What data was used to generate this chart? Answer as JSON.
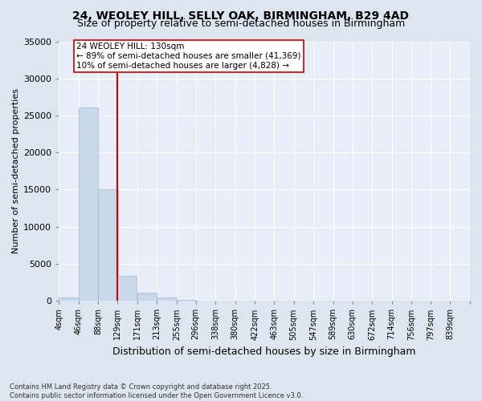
{
  "title1": "24, WEOLEY HILL, SELLY OAK, BIRMINGHAM, B29 4AD",
  "title2": "Size of property relative to semi-detached houses in Birmingham",
  "xlabel": "Distribution of semi-detached houses by size in Birmingham",
  "ylabel": "Number of semi-detached properties",
  "property_label": "24 WEOLEY HILL: 130sqm",
  "annotation_line1": "← 89% of semi-detached houses are smaller (41,369)",
  "annotation_line2": "10% of semi-detached houses are larger (4,828) →",
  "footer1": "Contains HM Land Registry data © Crown copyright and database right 2025.",
  "footer2": "Contains public sector information licensed under the Open Government Licence v3.0.",
  "bin_labels": [
    "4sqm",
    "46sqm",
    "88sqm",
    "129sqm",
    "171sqm",
    "213sqm",
    "255sqm",
    "296sqm",
    "338sqm",
    "380sqm",
    "422sqm",
    "463sqm",
    "505sqm",
    "547sqm",
    "589sqm",
    "630sqm",
    "672sqm",
    "714sqm",
    "756sqm",
    "797sqm",
    "839sqm"
  ],
  "bin_edges": [
    4,
    46,
    88,
    129,
    171,
    213,
    255,
    296,
    338,
    380,
    422,
    463,
    505,
    547,
    589,
    630,
    672,
    714,
    756,
    797,
    839
  ],
  "bar_heights": [
    400,
    26100,
    15100,
    3400,
    1050,
    450,
    150,
    60,
    20,
    10,
    5,
    3,
    2,
    1,
    0,
    0,
    0,
    0,
    0,
    0
  ],
  "bar_color": "#c8d8e8",
  "bar_edge_color": "#a0b8d0",
  "vline_color": "#cc0000",
  "vline_x": 129,
  "ylim": [
    0,
    35000
  ],
  "yticks": [
    0,
    5000,
    10000,
    15000,
    20000,
    25000,
    30000,
    35000
  ],
  "bg_color": "#dde6f0",
  "plot_bg_color": "#e8eef8",
  "grid_color": "#ffffff",
  "title_fontsize": 10,
  "subtitle_fontsize": 9
}
